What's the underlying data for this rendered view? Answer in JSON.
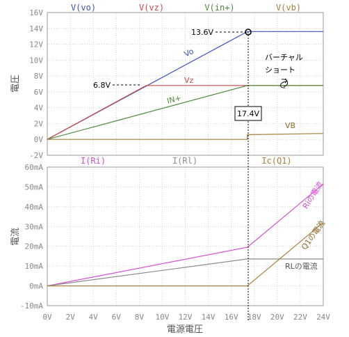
{
  "chart_data": [
    {
      "type": "line",
      "ylabel": "電圧",
      "ylim": [
        -2,
        16
      ],
      "yticks": [
        "16V",
        "14V",
        "12V",
        "10V",
        "8V",
        "6V",
        "4V",
        "2V",
        "0V",
        "-2V"
      ],
      "grid": true,
      "series": [
        {
          "name": "V(vo)",
          "color": "#3a50c2",
          "x": [
            0,
            17.4,
            24
          ],
          "y": [
            0,
            13.6,
            13.6
          ]
        },
        {
          "name": "V(vz)",
          "color": "#cc4a4a",
          "x": [
            0,
            8.6,
            17.4,
            24
          ],
          "y": [
            0,
            6.8,
            6.8,
            6.8
          ]
        },
        {
          "name": "V(in+)",
          "color": "#4b8b3b",
          "x": [
            0,
            17.4,
            24
          ],
          "y": [
            0,
            6.8,
            6.8
          ]
        },
        {
          "name": "V(vb)",
          "color": "#a6803a",
          "x": [
            0,
            17.4,
            17.4,
            24
          ],
          "y": [
            0,
            0,
            0.6,
            0.75
          ]
        }
      ],
      "annotations": {
        "vo": "Vo",
        "vz": "Vz",
        "inp": "IN+",
        "vb": "VB",
        "v136": "13.6V",
        "v68": "6.8V",
        "v174": "17.4V",
        "virtual_short_1": "バーチャル",
        "virtual_short_2": "ショート"
      }
    },
    {
      "type": "line",
      "xlabel": "電源電圧",
      "ylabel": "電流",
      "ylim": [
        -10,
        60
      ],
      "yticks": [
        "60mA",
        "50mA",
        "40mA",
        "30mA",
        "20mA",
        "10mA",
        "0mA",
        "-10mA"
      ],
      "xlim": [
        0,
        24
      ],
      "xticks": [
        "0V",
        "2V",
        "4V",
        "6V",
        "8V",
        "10V",
        "12V",
        "14V",
        "16V",
        "18V",
        "20V",
        "22V",
        "24V"
      ],
      "grid": true,
      "series": [
        {
          "name": "I(Ri)",
          "color": "#d24fd2",
          "x": [
            0,
            17.4,
            24
          ],
          "y": [
            0,
            19.5,
            51.5
          ]
        },
        {
          "name": "I(Rl)",
          "color": "#8c8c8c",
          "x": [
            0,
            17.4,
            24
          ],
          "y": [
            0,
            13.6,
            13.6
          ]
        },
        {
          "name": "Ic(Q1)",
          "color": "#a6803a",
          "x": [
            0,
            17.4,
            24
          ],
          "y": [
            0,
            0,
            32
          ]
        }
      ],
      "annotations": {
        "ri": "Riの電流",
        "q1": "Q1の電流",
        "rl": "RLの電流"
      }
    }
  ]
}
